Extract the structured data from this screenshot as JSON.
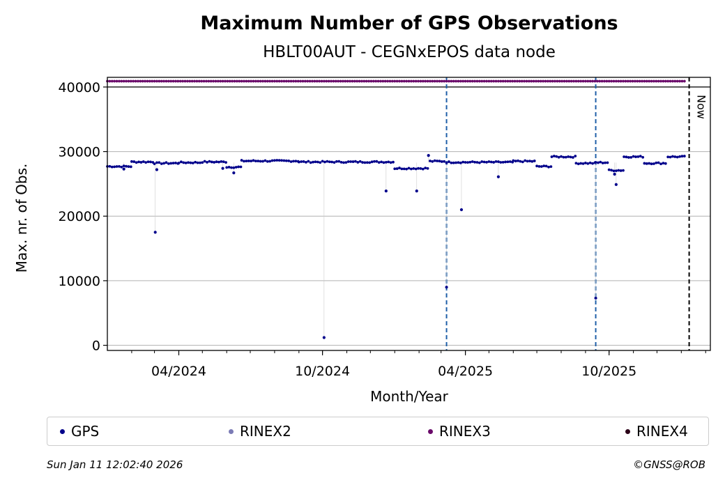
{
  "chart_data": {
    "type": "scatter",
    "title": "Maximum Number of GPS Observations",
    "subtitle": "HBLT00AUT - CEGNxEPOS data node",
    "xlabel": "Month/Year",
    "ylabel": "Max. nr. of Obs.",
    "xlim": [
      "2024-01-01",
      "2026-02-07"
    ],
    "ylim": [
      -800,
      41500
    ],
    "yticks": [
      0,
      10000,
      20000,
      30000,
      40000
    ],
    "ytick_labels": [
      "0",
      "10000",
      "20000",
      "30000",
      "40000"
    ],
    "xticks": [
      "2024-04-01",
      "2024-10-01",
      "2025-04-01",
      "2025-10-01"
    ],
    "xtick_labels": [
      "04/2024",
      "10/2024",
      "04/2025",
      "10/2025"
    ],
    "grid": "horizontal",
    "vlines": [
      {
        "date": "2025-03-08",
        "style": "dashed",
        "color": "#1f5fa8"
      },
      {
        "date": "2025-09-14",
        "style": "dashed",
        "color": "#1f5fa8"
      },
      {
        "date": "2026-01-11",
        "style": "dashed",
        "color": "#000000",
        "label": "Now"
      }
    ],
    "hline": {
      "y": 40000,
      "color": "#000000"
    },
    "series": [
      {
        "name": "GPS",
        "color": "#00008b",
        "plateaus": [
          {
            "start": "2024-01-01",
            "end": "2024-02-01",
            "value": 27700
          },
          {
            "start": "2024-02-01",
            "end": "2024-03-01",
            "value": 28400
          },
          {
            "start": "2024-03-01",
            "end": "2024-04-01",
            "value": 28200
          },
          {
            "start": "2024-04-01",
            "end": "2024-05-01",
            "value": 28300
          },
          {
            "start": "2024-05-01",
            "end": "2024-06-01",
            "value": 28400
          },
          {
            "start": "2024-06-01",
            "end": "2024-06-20",
            "value": 27600
          },
          {
            "start": "2024-06-20",
            "end": "2024-09-01",
            "value": 28550
          },
          {
            "start": "2024-09-01",
            "end": "2025-01-01",
            "value": 28400
          },
          {
            "start": "2025-01-01",
            "end": "2025-02-15",
            "value": 27400
          },
          {
            "start": "2025-02-15",
            "end": "2025-03-08",
            "value": 28500
          },
          {
            "start": "2025-03-08",
            "end": "2025-06-01",
            "value": 28350
          },
          {
            "start": "2025-06-01",
            "end": "2025-07-01",
            "value": 28500
          },
          {
            "start": "2025-07-01",
            "end": "2025-07-20",
            "value": 27700
          },
          {
            "start": "2025-07-20",
            "end": "2025-08-20",
            "value": 29200
          },
          {
            "start": "2025-08-20",
            "end": "2025-09-14",
            "value": 28200
          },
          {
            "start": "2025-09-14",
            "end": "2025-10-01",
            "value": 28300
          },
          {
            "start": "2025-10-01",
            "end": "2025-10-20",
            "value": 27100
          },
          {
            "start": "2025-10-20",
            "end": "2025-11-15",
            "value": 29200
          },
          {
            "start": "2025-11-15",
            "end": "2025-12-15",
            "value": 28200
          },
          {
            "start": "2025-12-15",
            "end": "2026-01-08",
            "value": 29200
          }
        ],
        "outliers": [
          {
            "date": "2024-01-22",
            "value": 27300
          },
          {
            "date": "2024-03-02",
            "value": 17500
          },
          {
            "date": "2024-03-04",
            "value": 27200
          },
          {
            "date": "2024-05-27",
            "value": 27400
          },
          {
            "date": "2024-06-10",
            "value": 26700
          },
          {
            "date": "2024-10-03",
            "value": 1200
          },
          {
            "date": "2024-12-21",
            "value": 23900
          },
          {
            "date": "2025-01-29",
            "value": 23900
          },
          {
            "date": "2025-02-13",
            "value": 29400
          },
          {
            "date": "2025-03-08",
            "value": 9000
          },
          {
            "date": "2025-03-27",
            "value": 21000
          },
          {
            "date": "2025-05-13",
            "value": 26100
          },
          {
            "date": "2025-09-14",
            "value": 7300
          },
          {
            "date": "2025-10-08",
            "value": 26500
          },
          {
            "date": "2025-10-10",
            "value": 24900
          }
        ]
      },
      {
        "name": "RINEX2",
        "color": "#7b7bb5",
        "points": []
      },
      {
        "name": "RINEX3",
        "color": "#6a0a6a",
        "plateaus": [
          {
            "start": "2024-01-01",
            "end": "2026-01-08",
            "value": 40900
          }
        ]
      },
      {
        "name": "RINEX4",
        "color": "#2b0018",
        "points": []
      }
    ]
  },
  "legend": [
    {
      "label": "GPS",
      "color": "#00008b"
    },
    {
      "label": "RINEX2",
      "color": "#7b7bb5"
    },
    {
      "label": "RINEX3",
      "color": "#6a0a6a"
    },
    {
      "label": "RINEX4",
      "color": "#2b0018"
    }
  ],
  "footer": {
    "timestamp": "Sun Jan 11 12:02:40 2026",
    "copyright": "©GNSS@ROB"
  }
}
